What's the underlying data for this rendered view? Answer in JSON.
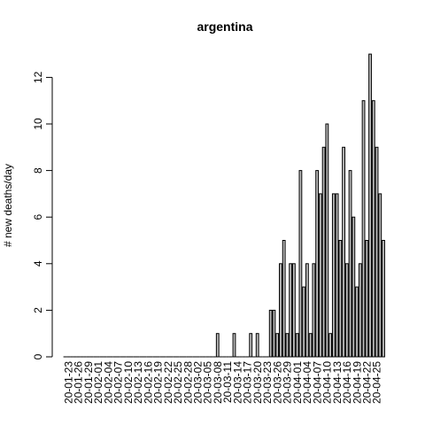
{
  "chart_data": {
    "type": "bar",
    "title": "argentina",
    "xlabel": "",
    "ylabel": "# new deaths/day",
    "ylim": [
      0,
      13
    ],
    "y_ticks": [
      0,
      2,
      4,
      6,
      8,
      10,
      12
    ],
    "x_tick_labels": [
      "20-01-23",
      "20-01-26",
      "20-01-29",
      "20-02-01",
      "20-02-04",
      "20-02-07",
      "20-02-10",
      "20-02-13",
      "20-02-16",
      "20-02-19",
      "20-02-22",
      "20-02-25",
      "20-02-28",
      "20-03-02",
      "20-03-05",
      "20-03-08",
      "20-03-11",
      "20-03-14",
      "20-03-17",
      "20-03-20",
      "20-03-23",
      "20-03-26",
      "20-03-29",
      "20-04-01",
      "20-04-04",
      "20-04-07",
      "20-04-10",
      "20-04-13",
      "20-04-16",
      "20-04-19",
      "20-04-22",
      "20-04-25"
    ],
    "x_start": "2020-01-22",
    "x_end": "2020-04-27",
    "values": [
      0,
      0,
      0,
      0,
      0,
      0,
      0,
      0,
      0,
      0,
      0,
      0,
      0,
      0,
      0,
      0,
      0,
      0,
      0,
      0,
      0,
      0,
      0,
      0,
      0,
      0,
      0,
      0,
      0,
      0,
      0,
      0,
      0,
      0,
      0,
      0,
      0,
      0,
      0,
      0,
      0,
      0,
      0,
      0,
      0,
      0,
      1,
      0,
      0,
      0,
      0,
      1,
      0,
      0,
      0,
      0,
      1,
      0,
      1,
      0,
      0,
      0,
      2,
      2,
      1,
      4,
      5,
      1,
      4,
      4,
      1,
      8,
      3,
      4,
      1,
      4,
      8,
      7,
      9,
      10,
      1,
      7,
      7,
      5,
      9,
      4,
      8,
      6,
      3,
      4,
      11,
      5,
      13,
      11,
      9,
      7,
      5
    ],
    "bar_color": "#bebebe",
    "grid": false
  }
}
